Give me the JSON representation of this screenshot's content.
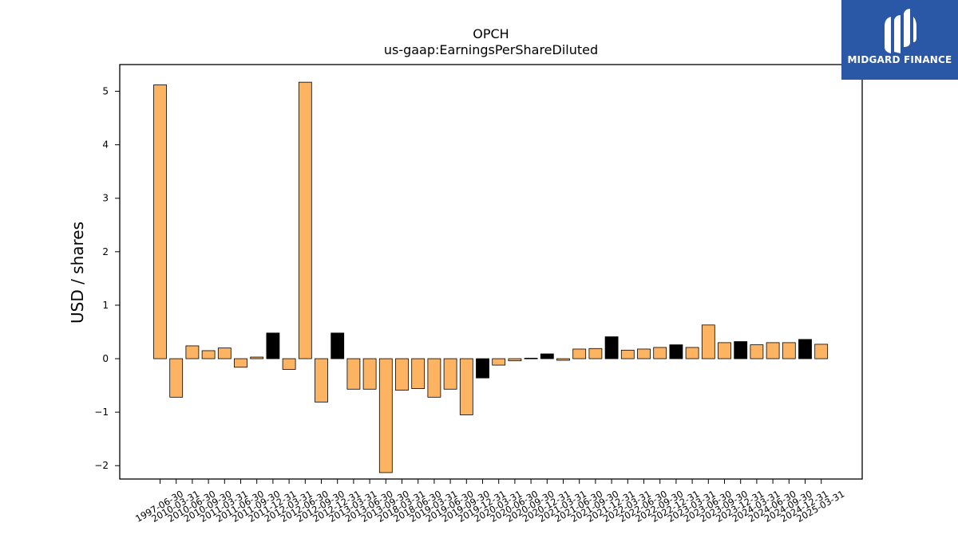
{
  "chart_data": {
    "type": "bar",
    "title": "OPCH",
    "subtitle": "us-gaap:EarningsPerShareDiluted",
    "xlabel": "",
    "ylabel": "USD / shares",
    "ylim": [
      -2.25,
      5.5
    ],
    "yticks": [
      -2,
      -1,
      0,
      1,
      2,
      3,
      4,
      5
    ],
    "grid": false,
    "categories": [
      "1997-06-30",
      "2010-03-31",
      "2010-06-30",
      "2010-09-30",
      "2011-03-31",
      "2011-06-30",
      "2011-09-30",
      "2011-12-31",
      "2012-03-31",
      "2012-06-30",
      "2012-09-30",
      "2012-12-31",
      "2013-03-31",
      "2013-06-30",
      "2013-09-30",
      "2018-03-31",
      "2018-06-30",
      "2019-03-31",
      "2019-06-30",
      "2019-09-30",
      "2019-12-31",
      "2020-03-31",
      "2020-06-30",
      "2020-09-30",
      "2020-12-31",
      "2021-03-31",
      "2021-06-30",
      "2021-09-30",
      "2021-12-31",
      "2022-03-31",
      "2022-06-30",
      "2022-09-30",
      "2022-12-31",
      "2023-03-31",
      "2023-06-30",
      "2023-09-30",
      "2023-12-31",
      "2024-03-31",
      "2024-06-30",
      "2024-09-30",
      "2024-12-31",
      "2025-03-31"
    ],
    "values": [
      5.12,
      -0.72,
      0.24,
      0.15,
      0.2,
      -0.16,
      0.03,
      0.48,
      -0.2,
      5.17,
      -0.81,
      0.48,
      -0.57,
      -0.57,
      -2.13,
      -0.59,
      -0.56,
      -0.72,
      -0.57,
      -1.05,
      -0.36,
      -0.12,
      -0.04,
      0.01,
      0.09,
      -0.03,
      0.18,
      0.19,
      0.41,
      0.16,
      0.18,
      0.21,
      0.26,
      0.21,
      0.63,
      0.3,
      0.32,
      0.26,
      0.3,
      0.3,
      0.36,
      0.27
    ],
    "highlight": [
      false,
      false,
      false,
      false,
      false,
      false,
      false,
      true,
      false,
      false,
      false,
      true,
      false,
      false,
      false,
      false,
      false,
      false,
      false,
      false,
      true,
      false,
      false,
      false,
      true,
      false,
      false,
      false,
      true,
      false,
      false,
      false,
      true,
      false,
      false,
      false,
      true,
      false,
      false,
      false,
      true,
      false
    ],
    "colors": {
      "bar": "#fdb462",
      "highlight": "#000000",
      "edge": "#000000"
    }
  },
  "logo": {
    "text": "MIDGARD FINANCE",
    "icon": "midgard-logo-icon",
    "color": "#2a58a6"
  }
}
